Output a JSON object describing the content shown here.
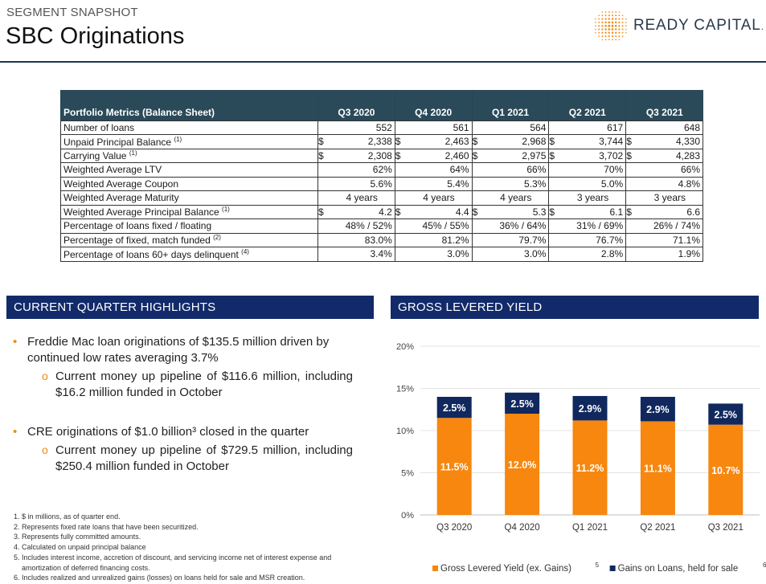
{
  "header": {
    "kicker": "SEGMENT SNAPSHOT",
    "title": "SBC Originations",
    "logo_text": "READY CAPITAL",
    "logo_suffix": "."
  },
  "table": {
    "header_label": "Portfolio Metrics (Balance Sheet)",
    "quarters": [
      "Q3 2020",
      "Q4 2020",
      "Q1 2021",
      "Q2 2021",
      "Q3 2021"
    ],
    "rows": [
      {
        "label": "Number of loans",
        "sup": "",
        "currency": false,
        "values": [
          "552",
          "561",
          "564",
          "617",
          "648"
        ]
      },
      {
        "label": "Unpaid Principal Balance",
        "sup": "(1)",
        "currency": true,
        "values": [
          "2,338",
          "2,463",
          "2,968",
          "3,744",
          "4,330"
        ]
      },
      {
        "label": "Carrying Value",
        "sup": "(1)",
        "currency": true,
        "values": [
          "2,308",
          "2,460",
          "2,975",
          "3,702",
          "4,283"
        ]
      },
      {
        "label": "Weighted Average LTV",
        "sup": "",
        "currency": false,
        "values": [
          "62%",
          "64%",
          "66%",
          "70%",
          "66%"
        ]
      },
      {
        "label": "Weighted Average Coupon",
        "sup": "",
        "currency": false,
        "values": [
          "5.6%",
          "5.4%",
          "5.3%",
          "5.0%",
          "4.8%"
        ]
      },
      {
        "label": "Weighted Average Maturity",
        "sup": "",
        "currency": false,
        "center": true,
        "values": [
          "4 years",
          "4 years",
          "4 years",
          "3 years",
          "3 years"
        ]
      },
      {
        "label": "Weighted Average Principal Balance",
        "sup": "(1)",
        "currency": true,
        "values": [
          "4.2",
          "4.4",
          "5.3",
          "6.1",
          "6.6"
        ]
      },
      {
        "label": "Percentage of loans fixed / floating",
        "sup": "",
        "currency": false,
        "values": [
          "48% / 52%",
          "45% / 55%",
          "36% / 64%",
          "31% / 69%",
          "26% / 74%"
        ]
      },
      {
        "label": "Percentage of fixed, match funded",
        "sup": "(2)",
        "currency": false,
        "values": [
          "83.0%",
          "81.2%",
          "79.7%",
          "76.7%",
          "71.1%"
        ]
      },
      {
        "label": "Percentage of loans 60+ days delinquent",
        "sup": "(4)",
        "currency": false,
        "values": [
          "3.4%",
          "3.0%",
          "3.0%",
          "2.8%",
          "1.9%"
        ]
      }
    ],
    "currency_symbol": "$"
  },
  "highlights": {
    "heading": "CURRENT QUARTER HIGHLIGHTS",
    "items": [
      {
        "text": "Freddie Mac loan originations of $135.5 million driven by continued low rates averaging 3.7%",
        "sub": "Current money up pipeline of $116.6 million, including $16.2 million funded in October"
      },
      {
        "text": "CRE originations of $1.0 billion³ closed in the quarter",
        "sub": "Current money up pipeline of $729.5 million, including $250.4 million funded in October"
      }
    ],
    "footnotes": [
      "1. $ in millions, as of quarter end.",
      "2. Represents fixed rate loans that have been securitized.",
      "3. Represents fully committed amounts.",
      "4. Calculated on unpaid principal balance",
      "5. Includes interest income, accretion of discount, and servicing income net of interest expense and amortization of deferred financing costs.",
      "6. Includes realized and unrealized gains (losses) on loans held for sale and MSR creation."
    ]
  },
  "chart_section": {
    "heading": "GROSS LEVERED YIELD"
  },
  "chart_data": {
    "type": "bar",
    "stacked": true,
    "categories": [
      "Q3 2020",
      "Q4 2020",
      "Q1 2021",
      "Q2 2021",
      "Q3 2021"
    ],
    "series": [
      {
        "name": "Gross Levered Yield (ex. Gains)",
        "name_sup": "5",
        "color": "#f7870f",
        "values": [
          11.5,
          12.0,
          11.2,
          11.1,
          10.7
        ],
        "labels": [
          "11.5%",
          "12.0%",
          "11.2%",
          "11.1%",
          "10.7%"
        ]
      },
      {
        "name": "Gains on Loans, held for sale",
        "name_sup": "6",
        "color": "#10285e",
        "values": [
          2.5,
          2.5,
          2.9,
          2.9,
          2.5
        ],
        "labels": [
          "2.5%",
          "2.5%",
          "2.9%",
          "2.9%",
          "2.5%"
        ]
      }
    ],
    "ylim": [
      0,
      20
    ],
    "yticks": [
      0,
      5,
      10,
      15,
      20
    ],
    "ytick_labels": [
      "0%",
      "5%",
      "10%",
      "15%",
      "20%"
    ],
    "grid": true,
    "legend": "bottom"
  }
}
